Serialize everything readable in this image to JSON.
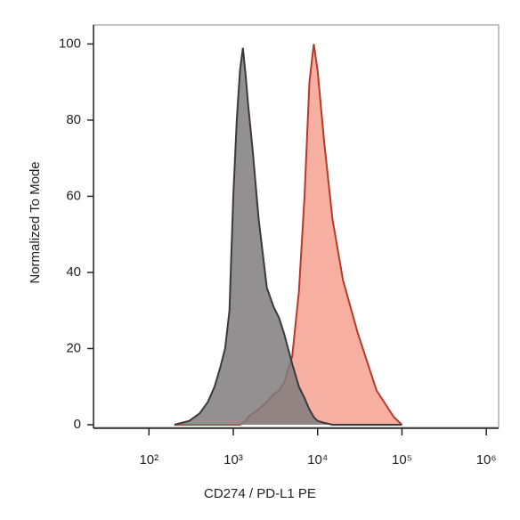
{
  "chart_data": {
    "type": "area",
    "x_label": "CD274 / PD-L1 PE",
    "y_label": "Normalized To Mode",
    "xscale": "log",
    "x": [
      200,
      300,
      400,
      500,
      600,
      700,
      800,
      900,
      1000,
      1100,
      1200,
      1300,
      1400,
      1500,
      1700,
      2000,
      2500,
      3000,
      3500,
      4000,
      5000,
      6000,
      7000,
      8000,
      9000,
      10000,
      12000,
      15000,
      20000,
      30000,
      50000,
      80000,
      100000
    ],
    "series": [
      {
        "color": "#f4a191",
        "line_color": "#b8392b",
        "values": [
          0,
          0,
          0,
          0,
          0,
          0,
          0,
          0,
          0,
          0,
          0,
          0.5,
          1,
          2,
          3,
          4,
          6,
          8,
          9,
          11,
          18,
          35,
          60,
          90,
          100,
          93,
          74,
          54,
          38,
          24,
          9,
          2,
          0
        ]
      },
      {
        "color": "#7f7d7e",
        "line_color": "#3a3a3a",
        "values": [
          0,
          1,
          3,
          6,
          10,
          15,
          20,
          30,
          60,
          80,
          93,
          99,
          92,
          84,
          72,
          54,
          36,
          31,
          28,
          24,
          16,
          10,
          7,
          4,
          2,
          1,
          0.5,
          0,
          0,
          0,
          0,
          0,
          0
        ]
      }
    ],
    "xlim": [
      22,
      1400000
    ],
    "xticks": [
      {
        "value": 100,
        "label": "10²"
      },
      {
        "value": 1000,
        "label": "10³"
      },
      {
        "value": 10000,
        "label": "10⁴"
      },
      {
        "value": 100000,
        "label": "10⁵"
      },
      {
        "value": 1000000,
        "label": "10⁶"
      }
    ],
    "ylim": [
      0,
      105
    ],
    "yticks": [
      0,
      20,
      40,
      60,
      80,
      100
    ],
    "grid": false
  }
}
